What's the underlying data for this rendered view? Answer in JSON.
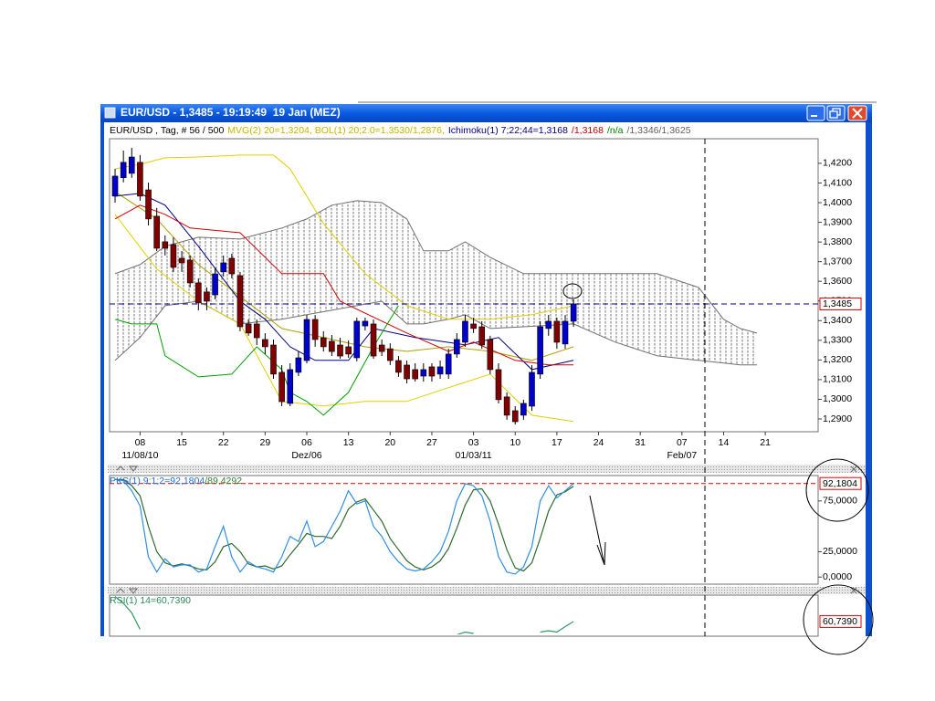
{
  "window": {
    "title": "EUR/USD - 1,3485 - 19:19:49  19 Jan (MEZ)"
  },
  "chart_data": [
    {
      "type": "candlestick",
      "header": [
        {
          "text": "EUR/USD , Tag, # 56 / 500",
          "color": "#000000"
        },
        {
          "text": "MVG(2) 20=1,3204, BOL(1) 20;2.0=1,3530/1,2876,",
          "color": "#c8b400"
        },
        {
          "text": "Ichimoku(1) 7;22;44=1,3168",
          "color": "#000080"
        },
        {
          "text": "/1,3168",
          "color": "#c00000"
        },
        {
          "text": "/n/a",
          "color": "#008000"
        },
        {
          "text": "/1,3346/1,3625",
          "color": "#606060"
        }
      ],
      "up_color": "#0000cc",
      "down_color": "#800000",
      "open": [
        1.4033,
        1.4127,
        1.4149,
        1.4205,
        1.4065,
        1.3931,
        1.3801,
        1.3787,
        1.3717,
        1.3708,
        1.3592,
        1.3546,
        1.3531,
        1.3648,
        1.3717,
        1.3629,
        1.3383,
        1.3383,
        1.3304,
        1.3276,
        1.3137,
        1.2979,
        1.3137,
        1.3197,
        1.3406,
        1.3313,
        1.3295,
        1.3276,
        1.3267,
        1.3211,
        1.3373,
        1.3383,
        1.3276,
        1.3257,
        1.3197,
        1.3174,
        1.3151,
        1.3118,
        1.3165,
        1.3128,
        1.3128,
        1.323,
        1.329,
        1.3383,
        1.3369,
        1.3304,
        1.3151,
        1.3012,
        1.2942,
        1.2919,
        1.2965,
        1.3128,
        1.336,
        1.3397,
        1.3281,
        1.3397
      ],
      "high": [
        1.4172,
        1.4265,
        1.4279,
        1.4242,
        1.4102,
        1.3973,
        1.3833,
        1.3824,
        1.3754,
        1.3731,
        1.3615,
        1.3569,
        1.3671,
        1.3731,
        1.374,
        1.3648,
        1.3406,
        1.3406,
        1.3336,
        1.3304,
        1.3174,
        1.3183,
        1.3243,
        1.3429,
        1.3429,
        1.3346,
        1.3327,
        1.3313,
        1.3299,
        1.3415,
        1.3415,
        1.3406,
        1.3304,
        1.3285,
        1.322,
        1.3197,
        1.3183,
        1.3183,
        1.3183,
        1.3197,
        1.3257,
        1.3336,
        1.3429,
        1.3415,
        1.3397,
        1.3323,
        1.3183,
        1.3035,
        1.2965,
        1.2998,
        1.3174,
        1.3397,
        1.3429,
        1.3415,
        1.3429,
        1.3508
      ],
      "low": [
        1.4,
        1.4103,
        1.4126,
        1.401,
        1.3884,
        1.3754,
        1.3731,
        1.3648,
        1.3648,
        1.3569,
        1.3453,
        1.3453,
        1.3508,
        1.3624,
        1.3615,
        1.3346,
        1.3323,
        1.3276,
        1.323,
        1.3104,
        1.2965,
        1.2965,
        1.3118,
        1.3183,
        1.3267,
        1.3243,
        1.322,
        1.3206,
        1.3211,
        1.3193,
        1.335,
        1.3206,
        1.322,
        1.3174,
        1.3114,
        1.3081,
        1.309,
        1.309,
        1.309,
        1.3104,
        1.3104,
        1.3211,
        1.3267,
        1.3337,
        1.3257,
        1.3128,
        1.2979,
        1.2896,
        1.2872,
        1.2896,
        1.2942,
        1.3104,
        1.3323,
        1.3257,
        1.3257,
        1.3369
      ],
      "close": [
        1.4135,
        1.4205,
        1.4232,
        1.4033,
        1.3917,
        1.3768,
        1.3768,
        1.3671,
        1.3694,
        1.3592,
        1.349,
        1.3499,
        1.3638,
        1.3694,
        1.3638,
        1.3369,
        1.3337,
        1.3313,
        1.3267,
        1.3128,
        1.2988,
        1.3151,
        1.3211,
        1.3406,
        1.3304,
        1.3267,
        1.3243,
        1.322,
        1.323,
        1.3397,
        1.3397,
        1.322,
        1.3243,
        1.3197,
        1.3137,
        1.3104,
        1.3104,
        1.3151,
        1.3118,
        1.3165,
        1.323,
        1.3304,
        1.3397,
        1.336,
        1.3276,
        1.3151,
        1.2998,
        1.2919,
        1.2886,
        1.2979,
        1.3137,
        1.3369,
        1.3397,
        1.329,
        1.3397,
        1.3485
      ],
      "cloud": {
        "color": "#707070",
        "x": [
          0,
          3,
          6,
          10,
          15,
          20,
          23,
          26,
          29,
          32,
          35,
          37,
          40,
          42,
          45,
          49,
          55,
          60,
          65,
          70,
          73,
          75,
          77
        ],
        "span_a": [
          1.3198,
          1.3314,
          1.3476,
          1.3499,
          1.3383,
          1.3407,
          1.343,
          1.3453,
          1.3476,
          1.3499,
          1.3383,
          1.3383,
          1.3407,
          1.343,
          1.336,
          1.3369,
          1.3383,
          1.3291,
          1.3221,
          1.3198,
          1.3184,
          1.3175,
          1.3175
        ],
        "span_b": [
          1.3639,
          1.3685,
          1.3778,
          1.3824,
          1.3815,
          1.3871,
          1.3917,
          1.3987,
          1.401,
          1.4,
          1.3917,
          1.3755,
          1.3755,
          1.3801,
          1.3722,
          1.3639,
          1.3639,
          1.3639,
          1.3639,
          1.3569,
          1.3407,
          1.336,
          1.3337
        ]
      },
      "lines": [
        {
          "color": "#e0d000",
          "x": [
            0,
            3,
            6,
            10,
            15,
            19,
            21,
            25,
            30,
            35,
            40,
            45,
            50,
            55
          ],
          "values": [
            1.4172,
            1.4195,
            1.4228,
            1.4232,
            1.4242,
            1.4242,
            1.4172,
            1.3894,
            1.3639,
            1.3476,
            1.3407,
            1.3407,
            1.343,
            1.3476
          ]
        },
        {
          "color": "#e0d000",
          "x": [
            0,
            5,
            10,
            15,
            20,
            25,
            30,
            35,
            40,
            45,
            50,
            55
          ],
          "values": [
            1.394,
            1.3662,
            1.3499,
            1.3383,
            1.2989,
            1.2966,
            1.2989,
            1.2989,
            1.3059,
            1.3128,
            1.2919,
            1.2887
          ]
        },
        {
          "color": "#b0a000",
          "x": [
            0,
            5,
            10,
            15,
            20,
            25,
            30,
            35,
            40,
            45,
            50,
            55
          ],
          "values": [
            1.4056,
            1.3917,
            1.3685,
            1.3523,
            1.336,
            1.3314,
            1.3267,
            1.3244,
            1.3267,
            1.3244,
            1.3198,
            1.3267
          ]
        },
        {
          "color": "#000080",
          "x": [
            0,
            3,
            6,
            10,
            15,
            18,
            21,
            24,
            28,
            31,
            36,
            42,
            46,
            50,
            55
          ],
          "values": [
            1.4033,
            1.4047,
            1.3987,
            1.3778,
            1.3499,
            1.3407,
            1.3267,
            1.3198,
            1.3198,
            1.336,
            1.3314,
            1.3277,
            1.3314,
            1.3151,
            1.3198
          ]
        },
        {
          "color": "#d00000",
          "x": [
            0,
            3,
            6,
            9,
            15,
            20,
            25,
            27,
            35,
            40,
            43,
            48,
            52,
            55
          ],
          "values": [
            1.3917,
            1.3987,
            1.394,
            1.3871,
            1.3847,
            1.3639,
            1.3639,
            1.3499,
            1.3337,
            1.3244,
            1.3291,
            1.3198,
            1.3175,
            1.3175
          ]
        },
        {
          "color": "#00a000",
          "x": [
            0,
            2,
            5,
            6,
            10,
            14,
            17,
            20,
            21,
            23,
            25,
            28,
            31,
            34
          ],
          "values": [
            1.3407,
            1.3383,
            1.3383,
            1.3221,
            1.3114,
            1.3128,
            1.3267,
            1.3151,
            1.3035,
            1.2989,
            1.2919,
            1.3035,
            1.3267,
            1.3476
          ]
        }
      ],
      "last_price": {
        "value": 1.3485,
        "label": "1,3485"
      },
      "ylim": [
        1.2835,
        1.4325
      ],
      "yticks": [
        {
          "value": 1.29,
          "label": "1,2900"
        },
        {
          "value": 1.3,
          "label": "1,3000"
        },
        {
          "value": 1.31,
          "label": "1,3100"
        },
        {
          "value": 1.32,
          "label": "1,3200"
        },
        {
          "value": 1.33,
          "label": "1,3300"
        },
        {
          "value": 1.34,
          "label": "1,3400"
        },
        {
          "value": 1.35,
          "label": "1,3500"
        },
        {
          "value": 1.36,
          "label": "1,3600"
        },
        {
          "value": 1.37,
          "label": "1,3700"
        },
        {
          "value": 1.38,
          "label": "1,3800"
        },
        {
          "value": 1.39,
          "label": "1,3900"
        },
        {
          "value": 1.4,
          "label": "1,4000"
        },
        {
          "value": 1.41,
          "label": "1,4100"
        },
        {
          "value": 1.42,
          "label": "1,4200"
        }
      ],
      "xlim": [
        -0.66,
        84.34
      ],
      "xticks": [
        {
          "value": 3,
          "label": "08"
        },
        {
          "value": 8,
          "label": "15"
        },
        {
          "value": 13,
          "label": "22"
        },
        {
          "value": 18,
          "label": "29"
        },
        {
          "value": 23,
          "label": "06"
        },
        {
          "value": 28,
          "label": "13"
        },
        {
          "value": 33,
          "label": "20"
        },
        {
          "value": 38,
          "label": "27"
        },
        {
          "value": 43,
          "label": "03"
        },
        {
          "value": 48,
          "label": "10"
        },
        {
          "value": 53,
          "label": "17"
        },
        {
          "value": 58,
          "label": "24"
        },
        {
          "value": 63,
          "label": "31"
        },
        {
          "value": 68,
          "label": "07"
        },
        {
          "value": 73,
          "label": "14"
        },
        {
          "value": 78,
          "label": "21"
        }
      ],
      "xsublabels": [
        {
          "value": 3,
          "label": "11/08/10"
        },
        {
          "value": 23,
          "label": "Dez/06"
        },
        {
          "value": 43,
          "label": "01/03/11"
        },
        {
          "value": 68,
          "label": "Feb/07"
        }
      ]
    },
    {
      "type": "line",
      "header": [
        {
          "text": "PKS(1) 9;1;2=92,1804",
          "color": "#1e6fd0"
        },
        {
          "text": "/89,4292",
          "color": "#2e7d32"
        }
      ],
      "series": [
        {
          "color": "#2e6b2e",
          "values": [
            96,
            96,
            90,
            80,
            50,
            25,
            14,
            11,
            13,
            11,
            8,
            7,
            15,
            30,
            33,
            25,
            13,
            10,
            11,
            8,
            11,
            22,
            32,
            43,
            40,
            40,
            38,
            50,
            67,
            74,
            77,
            66,
            55,
            38,
            27,
            16,
            10,
            7,
            10,
            16,
            28,
            48,
            71,
            86,
            87,
            75,
            52,
            27,
            9,
            6,
            14,
            38,
            65,
            81,
            84,
            89.4292
          ]
        },
        {
          "color": "#2f8fe0",
          "values": [
            96,
            95,
            85,
            70,
            20,
            5,
            18,
            10,
            12,
            12,
            5,
            8,
            30,
            50,
            20,
            5,
            15,
            10,
            8,
            5,
            20,
            40,
            35,
            55,
            30,
            35,
            50,
            65,
            85,
            72,
            75,
            50,
            40,
            25,
            15,
            8,
            6,
            8,
            15,
            25,
            45,
            75,
            92,
            90,
            80,
            55,
            20,
            5,
            3,
            10,
            30,
            75,
            90,
            78,
            85,
            92.1804
          ]
        }
      ],
      "last_value": {
        "value": 92.1804,
        "label": "92,1804"
      },
      "ylim": [
        -7,
        100
      ],
      "yticks": [
        {
          "value": 0,
          "label": "0,0000"
        },
        {
          "value": 25,
          "label": "25,0000"
        },
        {
          "value": 75,
          "label": "75,0000"
        }
      ],
      "xlim": [
        -0.66,
        84.34
      ]
    },
    {
      "type": "line",
      "header": [
        {
          "text": "RSI(1) 14=60,7390",
          "color": "#2e8b57"
        }
      ],
      "series": [
        {
          "color": "#2e9b5e",
          "x": [
            0,
            1,
            2,
            3,
            4,
            41,
            42,
            43,
            44,
            51,
            52,
            53,
            54,
            55
          ],
          "values": [
            79,
            74,
            67,
            55,
            null,
            51,
            53,
            52,
            null,
            53,
            54,
            53,
            57,
            60.739
          ]
        }
      ],
      "last_value": {
        "value": 60.739,
        "label": "60,7390"
      },
      "ylim": [
        50,
        80
      ],
      "xlim": [
        -0.66,
        84.34
      ]
    }
  ]
}
